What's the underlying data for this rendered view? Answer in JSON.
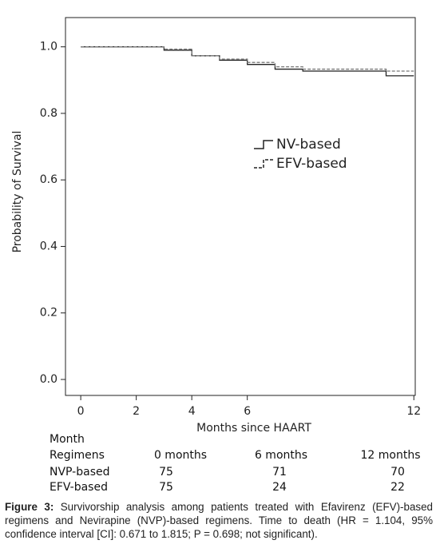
{
  "chart_data": {
    "type": "step",
    "x_label": "Months since HAART",
    "y_label": "Probability of Survival",
    "x": [
      0,
      3,
      4,
      5,
      6,
      7,
      8,
      11,
      12
    ],
    "series": [
      {
        "name": "NV-based",
        "color": "#222222",
        "dash": false,
        "values": [
          1.0,
          0.99,
          0.973,
          0.96,
          0.947,
          0.933,
          0.927,
          0.913,
          0.913
        ]
      },
      {
        "name": "EFV-based",
        "color": "#777777",
        "dash": true,
        "values": [
          1.0,
          0.993,
          0.973,
          0.963,
          0.953,
          0.94,
          0.933,
          0.927,
          0.927
        ]
      }
    ],
    "xlim": [
      -0.55,
      12.05
    ],
    "xticks": [
      0,
      2,
      4,
      6,
      12
    ],
    "ylim": [
      -0.048,
      1.088
    ],
    "yticks": [
      {
        "value": 0,
        "label": "0.0"
      },
      0.2,
      0.4,
      0.6,
      0.8,
      {
        "value": 1,
        "label": "1.0"
      }
    ]
  },
  "table": {
    "header": [
      "Month",
      "Regimens"
    ],
    "columns": [
      "0 months",
      "6  months",
      "12 months"
    ],
    "rows": [
      [
        "NVP-based",
        "75",
        "71",
        "70"
      ],
      [
        "EFV-based",
        "75",
        "24",
        "22"
      ]
    ]
  },
  "caption": {
    "label": "Figure 3:",
    "text": " Survivorship analysis among patients treated with Efavirenz (EFV)-based regimens and Nevirapine (NVP)-based regimens. Time to death (HR = 1.104, 95% confidence interval [CI]: 0.671 to 1.815; P = 0.698; not significant)."
  }
}
